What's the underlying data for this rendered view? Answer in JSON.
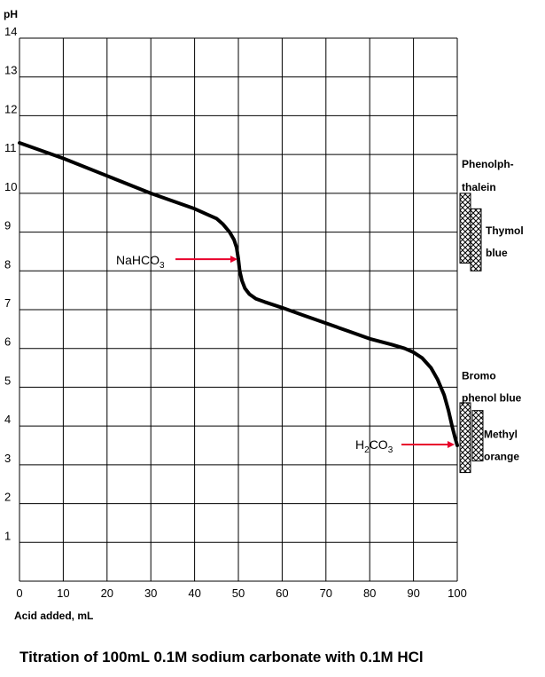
{
  "chart_data": {
    "type": "line",
    "title": "Titration of 100mL 0.1M sodium carbonate with 0.1M HCl",
    "xlabel": "Acid added, mL",
    "ylabel": "pH",
    "xlim": [
      0,
      100
    ],
    "ylim": [
      0,
      14
    ],
    "x_ticks": [
      "0",
      "10",
      "20",
      "30",
      "40",
      "50",
      "60",
      "70",
      "80",
      "90",
      "100"
    ],
    "y_ticks": [
      "1",
      "2",
      "3",
      "4",
      "5",
      "6",
      "7",
      "8",
      "9",
      "10",
      "11",
      "12",
      "13",
      "14"
    ],
    "grid": true,
    "series": [
      {
        "x": [
          0,
          10,
          20,
          30,
          40,
          43,
          45,
          46.5,
          48,
          49,
          49.6,
          50,
          50.3,
          50.8,
          51.5,
          52.5,
          54,
          56,
          60,
          65,
          70,
          75,
          80,
          85,
          88,
          90,
          92,
          94,
          95.5,
          97,
          98,
          98.8,
          99.5,
          100
        ],
        "y": [
          11.3,
          10.9,
          10.45,
          10.0,
          9.6,
          9.45,
          9.35,
          9.2,
          9.0,
          8.8,
          8.6,
          8.3,
          8.0,
          7.75,
          7.55,
          7.4,
          7.28,
          7.2,
          7.05,
          6.85,
          6.65,
          6.45,
          6.25,
          6.1,
          6.0,
          5.9,
          5.75,
          5.5,
          5.2,
          4.8,
          4.4,
          4.0,
          3.7,
          3.5
        ]
      }
    ],
    "annotations": [
      {
        "label": "NaHCO",
        "subscript": "3",
        "x": 50,
        "y": 8.3
      },
      {
        "label": "H",
        "subscript": "2",
        "label2": "CO",
        "subscript2": "3",
        "x": 100,
        "y": 3.5
      }
    ],
    "indicators": [
      {
        "name_lines": [
          "Phenolph-",
          "thalein"
        ],
        "range": [
          8.2,
          10.0
        ]
      },
      {
        "name_lines": [
          "Thymol",
          "blue"
        ],
        "range": [
          8.0,
          9.6
        ]
      },
      {
        "name_lines": [
          "Bromo",
          "phenol blue"
        ],
        "range": [
          2.8,
          4.6
        ]
      },
      {
        "name_lines": [
          "Methyl",
          "orange"
        ],
        "range": [
          3.1,
          4.4
        ]
      }
    ],
    "colors": {
      "curve": "#000000",
      "arrow": "#e8002c",
      "grid": "#000000"
    }
  }
}
